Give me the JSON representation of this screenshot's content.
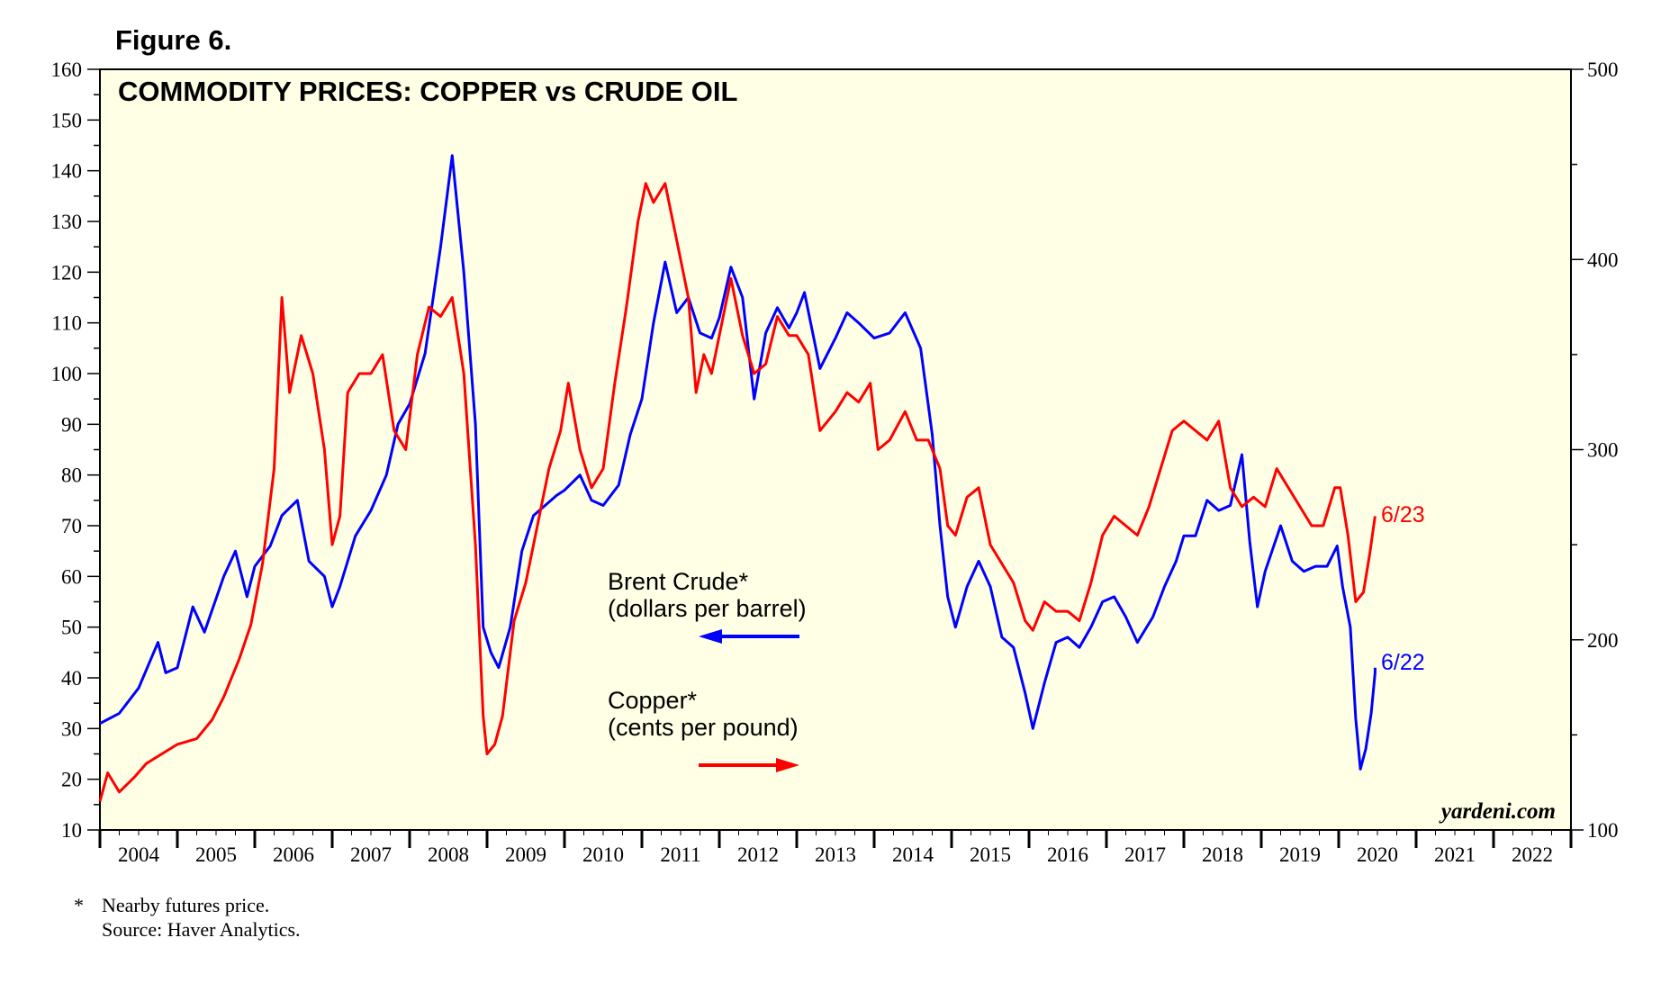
{
  "figure_label": "Figure 6.",
  "chart_data": {
    "type": "line",
    "title": "COMMODITY PRICES: COPPER vs CRUDE OIL",
    "x_categories": [
      "2004",
      "2005",
      "2006",
      "2007",
      "2008",
      "2009",
      "2010",
      "2011",
      "2012",
      "2013",
      "2014",
      "2015",
      "2016",
      "2017",
      "2018",
      "2019",
      "2020",
      "2021",
      "2022"
    ],
    "xlim": [
      2004.0,
      2023.0
    ],
    "y_left": {
      "lim": [
        10,
        160
      ],
      "ticks": [
        10,
        20,
        30,
        40,
        50,
        60,
        70,
        80,
        90,
        100,
        110,
        120,
        130,
        140,
        150,
        160
      ]
    },
    "y_right": {
      "lim": [
        100,
        500
      ],
      "ticks": [
        100,
        200,
        300,
        400,
        500
      ]
    },
    "grid": false,
    "background_color": "#ffffe6",
    "series": [
      {
        "name": "Brent Crude*",
        "unit": "(dollars per barrel)",
        "axis": "left",
        "arrow": "left",
        "color": "#0000ff",
        "end_label": "6/22",
        "points": [
          [
            2004.0,
            31
          ],
          [
            2004.25,
            33
          ],
          [
            2004.5,
            38
          ],
          [
            2004.75,
            47
          ],
          [
            2004.85,
            41
          ],
          [
            2005.0,
            42
          ],
          [
            2005.2,
            54
          ],
          [
            2005.35,
            49
          ],
          [
            2005.6,
            60
          ],
          [
            2005.75,
            65
          ],
          [
            2005.9,
            56
          ],
          [
            2006.0,
            62
          ],
          [
            2006.2,
            66
          ],
          [
            2006.35,
            72
          ],
          [
            2006.55,
            75
          ],
          [
            2006.7,
            63
          ],
          [
            2006.9,
            60
          ],
          [
            2007.0,
            54
          ],
          [
            2007.1,
            58
          ],
          [
            2007.3,
            68
          ],
          [
            2007.5,
            73
          ],
          [
            2007.7,
            80
          ],
          [
            2007.85,
            90
          ],
          [
            2008.0,
            94
          ],
          [
            2008.2,
            104
          ],
          [
            2008.4,
            125
          ],
          [
            2008.55,
            143
          ],
          [
            2008.7,
            120
          ],
          [
            2008.85,
            90
          ],
          [
            2008.95,
            50
          ],
          [
            2009.05,
            45
          ],
          [
            2009.15,
            42
          ],
          [
            2009.3,
            50
          ],
          [
            2009.45,
            65
          ],
          [
            2009.6,
            72
          ],
          [
            2009.75,
            74
          ],
          [
            2009.9,
            76
          ],
          [
            2010.0,
            77
          ],
          [
            2010.2,
            80
          ],
          [
            2010.35,
            75
          ],
          [
            2010.5,
            74
          ],
          [
            2010.7,
            78
          ],
          [
            2010.85,
            88
          ],
          [
            2011.0,
            95
          ],
          [
            2011.15,
            110
          ],
          [
            2011.3,
            122
          ],
          [
            2011.45,
            112
          ],
          [
            2011.6,
            115
          ],
          [
            2011.75,
            108
          ],
          [
            2011.9,
            107
          ],
          [
            2012.0,
            111
          ],
          [
            2012.15,
            121
          ],
          [
            2012.3,
            115
          ],
          [
            2012.45,
            95
          ],
          [
            2012.6,
            108
          ],
          [
            2012.75,
            113
          ],
          [
            2012.9,
            109
          ],
          [
            2013.0,
            112
          ],
          [
            2013.1,
            116
          ],
          [
            2013.3,
            101
          ],
          [
            2013.5,
            107
          ],
          [
            2013.65,
            112
          ],
          [
            2013.8,
            110
          ],
          [
            2014.0,
            107
          ],
          [
            2014.2,
            108
          ],
          [
            2014.4,
            112
          ],
          [
            2014.6,
            105
          ],
          [
            2014.75,
            88
          ],
          [
            2014.85,
            70
          ],
          [
            2014.95,
            56
          ],
          [
            2015.05,
            50
          ],
          [
            2015.2,
            58
          ],
          [
            2015.35,
            63
          ],
          [
            2015.5,
            58
          ],
          [
            2015.65,
            48
          ],
          [
            2015.8,
            46
          ],
          [
            2015.95,
            37
          ],
          [
            2016.05,
            30
          ],
          [
            2016.2,
            39
          ],
          [
            2016.35,
            47
          ],
          [
            2016.5,
            48
          ],
          [
            2016.65,
            46
          ],
          [
            2016.8,
            50
          ],
          [
            2016.95,
            55
          ],
          [
            2017.1,
            56
          ],
          [
            2017.25,
            52
          ],
          [
            2017.4,
            47
          ],
          [
            2017.6,
            52
          ],
          [
            2017.75,
            58
          ],
          [
            2017.9,
            63
          ],
          [
            2018.0,
            68
          ],
          [
            2018.15,
            68
          ],
          [
            2018.3,
            75
          ],
          [
            2018.45,
            73
          ],
          [
            2018.6,
            74
          ],
          [
            2018.75,
            84
          ],
          [
            2018.85,
            67
          ],
          [
            2018.95,
            54
          ],
          [
            2019.05,
            61
          ],
          [
            2019.25,
            70
          ],
          [
            2019.4,
            63
          ],
          [
            2019.55,
            61
          ],
          [
            2019.7,
            62
          ],
          [
            2019.85,
            62
          ],
          [
            2019.98,
            66
          ],
          [
            2020.05,
            58
          ],
          [
            2020.15,
            50
          ],
          [
            2020.22,
            32
          ],
          [
            2020.28,
            22
          ],
          [
            2020.35,
            26
          ],
          [
            2020.42,
            33
          ],
          [
            2020.47,
            41
          ],
          [
            2020.47,
            42
          ]
        ]
      },
      {
        "name": "Copper*",
        "unit": "(cents per pound)",
        "axis": "right",
        "arrow": "right",
        "color": "#ff0000",
        "end_label": "6/23",
        "points": [
          [
            2004.0,
            115
          ],
          [
            2004.1,
            130
          ],
          [
            2004.25,
            120
          ],
          [
            2004.45,
            128
          ],
          [
            2004.6,
            135
          ],
          [
            2004.8,
            140
          ],
          [
            2005.0,
            145
          ],
          [
            2005.25,
            148
          ],
          [
            2005.45,
            158
          ],
          [
            2005.6,
            170
          ],
          [
            2005.8,
            190
          ],
          [
            2005.95,
            208
          ],
          [
            2006.1,
            240
          ],
          [
            2006.25,
            290
          ],
          [
            2006.35,
            380
          ],
          [
            2006.45,
            330
          ],
          [
            2006.6,
            360
          ],
          [
            2006.75,
            340
          ],
          [
            2006.9,
            300
          ],
          [
            2007.0,
            250
          ],
          [
            2007.1,
            265
          ],
          [
            2007.2,
            330
          ],
          [
            2007.35,
            340
          ],
          [
            2007.5,
            340
          ],
          [
            2007.65,
            350
          ],
          [
            2007.8,
            310
          ],
          [
            2007.95,
            300
          ],
          [
            2008.1,
            350
          ],
          [
            2008.25,
            375
          ],
          [
            2008.4,
            370
          ],
          [
            2008.55,
            380
          ],
          [
            2008.7,
            340
          ],
          [
            2008.85,
            250
          ],
          [
            2008.95,
            160
          ],
          [
            2009.0,
            140
          ],
          [
            2009.1,
            145
          ],
          [
            2009.2,
            160
          ],
          [
            2009.35,
            210
          ],
          [
            2009.5,
            230
          ],
          [
            2009.65,
            260
          ],
          [
            2009.8,
            290
          ],
          [
            2009.95,
            310
          ],
          [
            2010.05,
            335
          ],
          [
            2010.2,
            300
          ],
          [
            2010.35,
            280
          ],
          [
            2010.5,
            290
          ],
          [
            2010.65,
            335
          ],
          [
            2010.8,
            375
          ],
          [
            2010.95,
            420
          ],
          [
            2011.05,
            440
          ],
          [
            2011.15,
            430
          ],
          [
            2011.3,
            440
          ],
          [
            2011.45,
            410
          ],
          [
            2011.6,
            380
          ],
          [
            2011.7,
            330
          ],
          [
            2011.8,
            350
          ],
          [
            2011.9,
            340
          ],
          [
            2012.0,
            360
          ],
          [
            2012.15,
            390
          ],
          [
            2012.3,
            360
          ],
          [
            2012.45,
            340
          ],
          [
            2012.6,
            345
          ],
          [
            2012.75,
            370
          ],
          [
            2012.9,
            360
          ],
          [
            2013.0,
            360
          ],
          [
            2013.15,
            350
          ],
          [
            2013.3,
            310
          ],
          [
            2013.5,
            320
          ],
          [
            2013.65,
            330
          ],
          [
            2013.8,
            325
          ],
          [
            2013.95,
            335
          ],
          [
            2014.05,
            300
          ],
          [
            2014.2,
            305
          ],
          [
            2014.4,
            320
          ],
          [
            2014.55,
            305
          ],
          [
            2014.7,
            305
          ],
          [
            2014.85,
            290
          ],
          [
            2014.95,
            260
          ],
          [
            2015.05,
            255
          ],
          [
            2015.2,
            275
          ],
          [
            2015.35,
            280
          ],
          [
            2015.5,
            250
          ],
          [
            2015.65,
            240
          ],
          [
            2015.8,
            230
          ],
          [
            2015.95,
            210
          ],
          [
            2016.05,
            205
          ],
          [
            2016.2,
            220
          ],
          [
            2016.35,
            215
          ],
          [
            2016.5,
            215
          ],
          [
            2016.65,
            210
          ],
          [
            2016.8,
            230
          ],
          [
            2016.95,
            255
          ],
          [
            2017.1,
            265
          ],
          [
            2017.25,
            260
          ],
          [
            2017.4,
            255
          ],
          [
            2017.55,
            270
          ],
          [
            2017.7,
            290
          ],
          [
            2017.85,
            310
          ],
          [
            2018.0,
            315
          ],
          [
            2018.15,
            310
          ],
          [
            2018.3,
            305
          ],
          [
            2018.45,
            315
          ],
          [
            2018.6,
            280
          ],
          [
            2018.75,
            270
          ],
          [
            2018.9,
            275
          ],
          [
            2019.05,
            270
          ],
          [
            2019.2,
            290
          ],
          [
            2019.35,
            280
          ],
          [
            2019.5,
            270
          ],
          [
            2019.65,
            260
          ],
          [
            2019.8,
            260
          ],
          [
            2019.95,
            280
          ],
          [
            2020.02,
            280
          ],
          [
            2020.12,
            255
          ],
          [
            2020.22,
            220
          ],
          [
            2020.32,
            225
          ],
          [
            2020.4,
            245
          ],
          [
            2020.47,
            265
          ]
        ]
      }
    ]
  },
  "watermark": "yardeni.com",
  "footnote": {
    "marker": "*",
    "lines": [
      "Nearby futures price.",
      "Source: Haver Analytics."
    ]
  }
}
